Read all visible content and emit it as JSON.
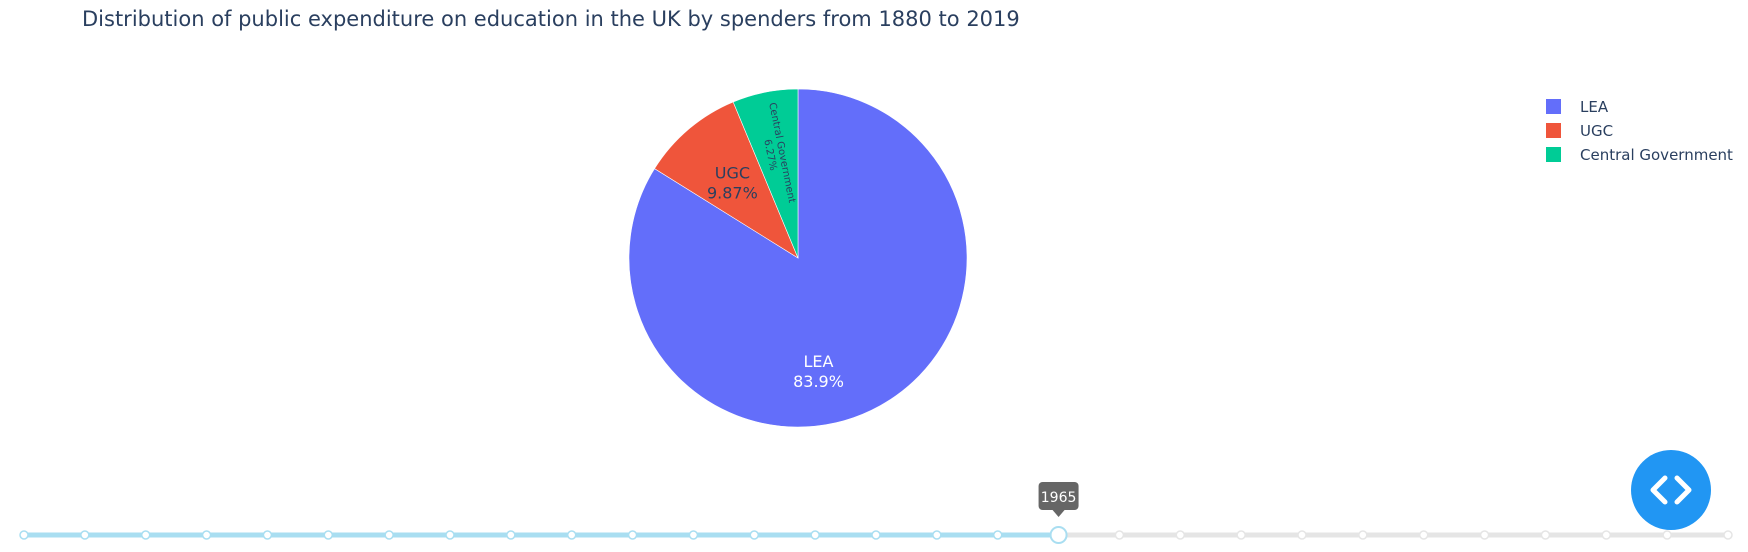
{
  "chart_data": {
    "type": "pie",
    "title": "Distribution of public expenditure on education in the UK by spenders from 1880 to 2019",
    "slices": [
      {
        "label": "LEA",
        "value": 83.9,
        "percent_label": "83.9%",
        "color": "#636efa",
        "text_color": "#ffffff"
      },
      {
        "label": "UGC",
        "value": 9.87,
        "percent_label": "9.87%",
        "color": "#ef553b",
        "text_color": "#2a3f5f"
      },
      {
        "label": "Central Government",
        "value": 6.27,
        "percent_label": "6.27%",
        "color": "#00cc96",
        "text_color": "#2a3f5f"
      }
    ],
    "legend": {
      "placement": "top-right",
      "entries": [
        "LEA",
        "UGC",
        "Central Government"
      ]
    },
    "slider": {
      "current_label": "1965",
      "step_count": 29,
      "active_index": 17,
      "active_color": "#a9def1",
      "inactive_color": "#e5e5e5"
    }
  },
  "controls": {
    "code_button_icon": "code-brackets-icon",
    "accent_color": "#2196f3"
  }
}
